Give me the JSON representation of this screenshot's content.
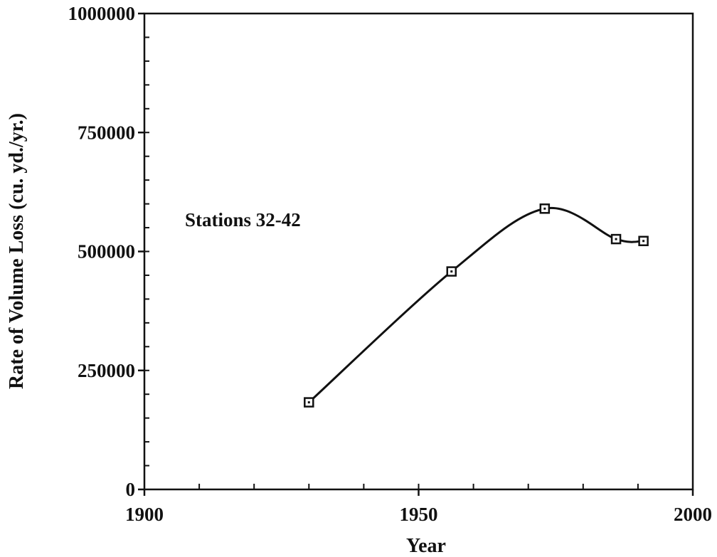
{
  "chart_data": {
    "type": "line",
    "title": "",
    "xlabel": "Year",
    "ylabel": "Rate of Volume Loss (cu. yd./yr.)",
    "xlim": [
      1900,
      2000
    ],
    "ylim": [
      0,
      1000000
    ],
    "x_ticks": [
      1900,
      1950,
      2000
    ],
    "y_ticks": [
      0,
      250000,
      500000,
      750000,
      1000000
    ],
    "x_tick_labels": [
      "1900",
      "1950",
      "2000"
    ],
    "y_tick_labels": [
      "0",
      "250000",
      "500000",
      "750000",
      "1000000"
    ],
    "x_minor_step": 10,
    "y_minor_step": 50000,
    "grid": false,
    "smooth": true,
    "marker": "open-square",
    "annotation": "Stations 32-42",
    "series": [
      {
        "x": [
          1930,
          1956,
          1973,
          1986,
          1991
        ],
        "y": [
          183000,
          458000,
          590000,
          526000,
          522000
        ]
      }
    ]
  }
}
